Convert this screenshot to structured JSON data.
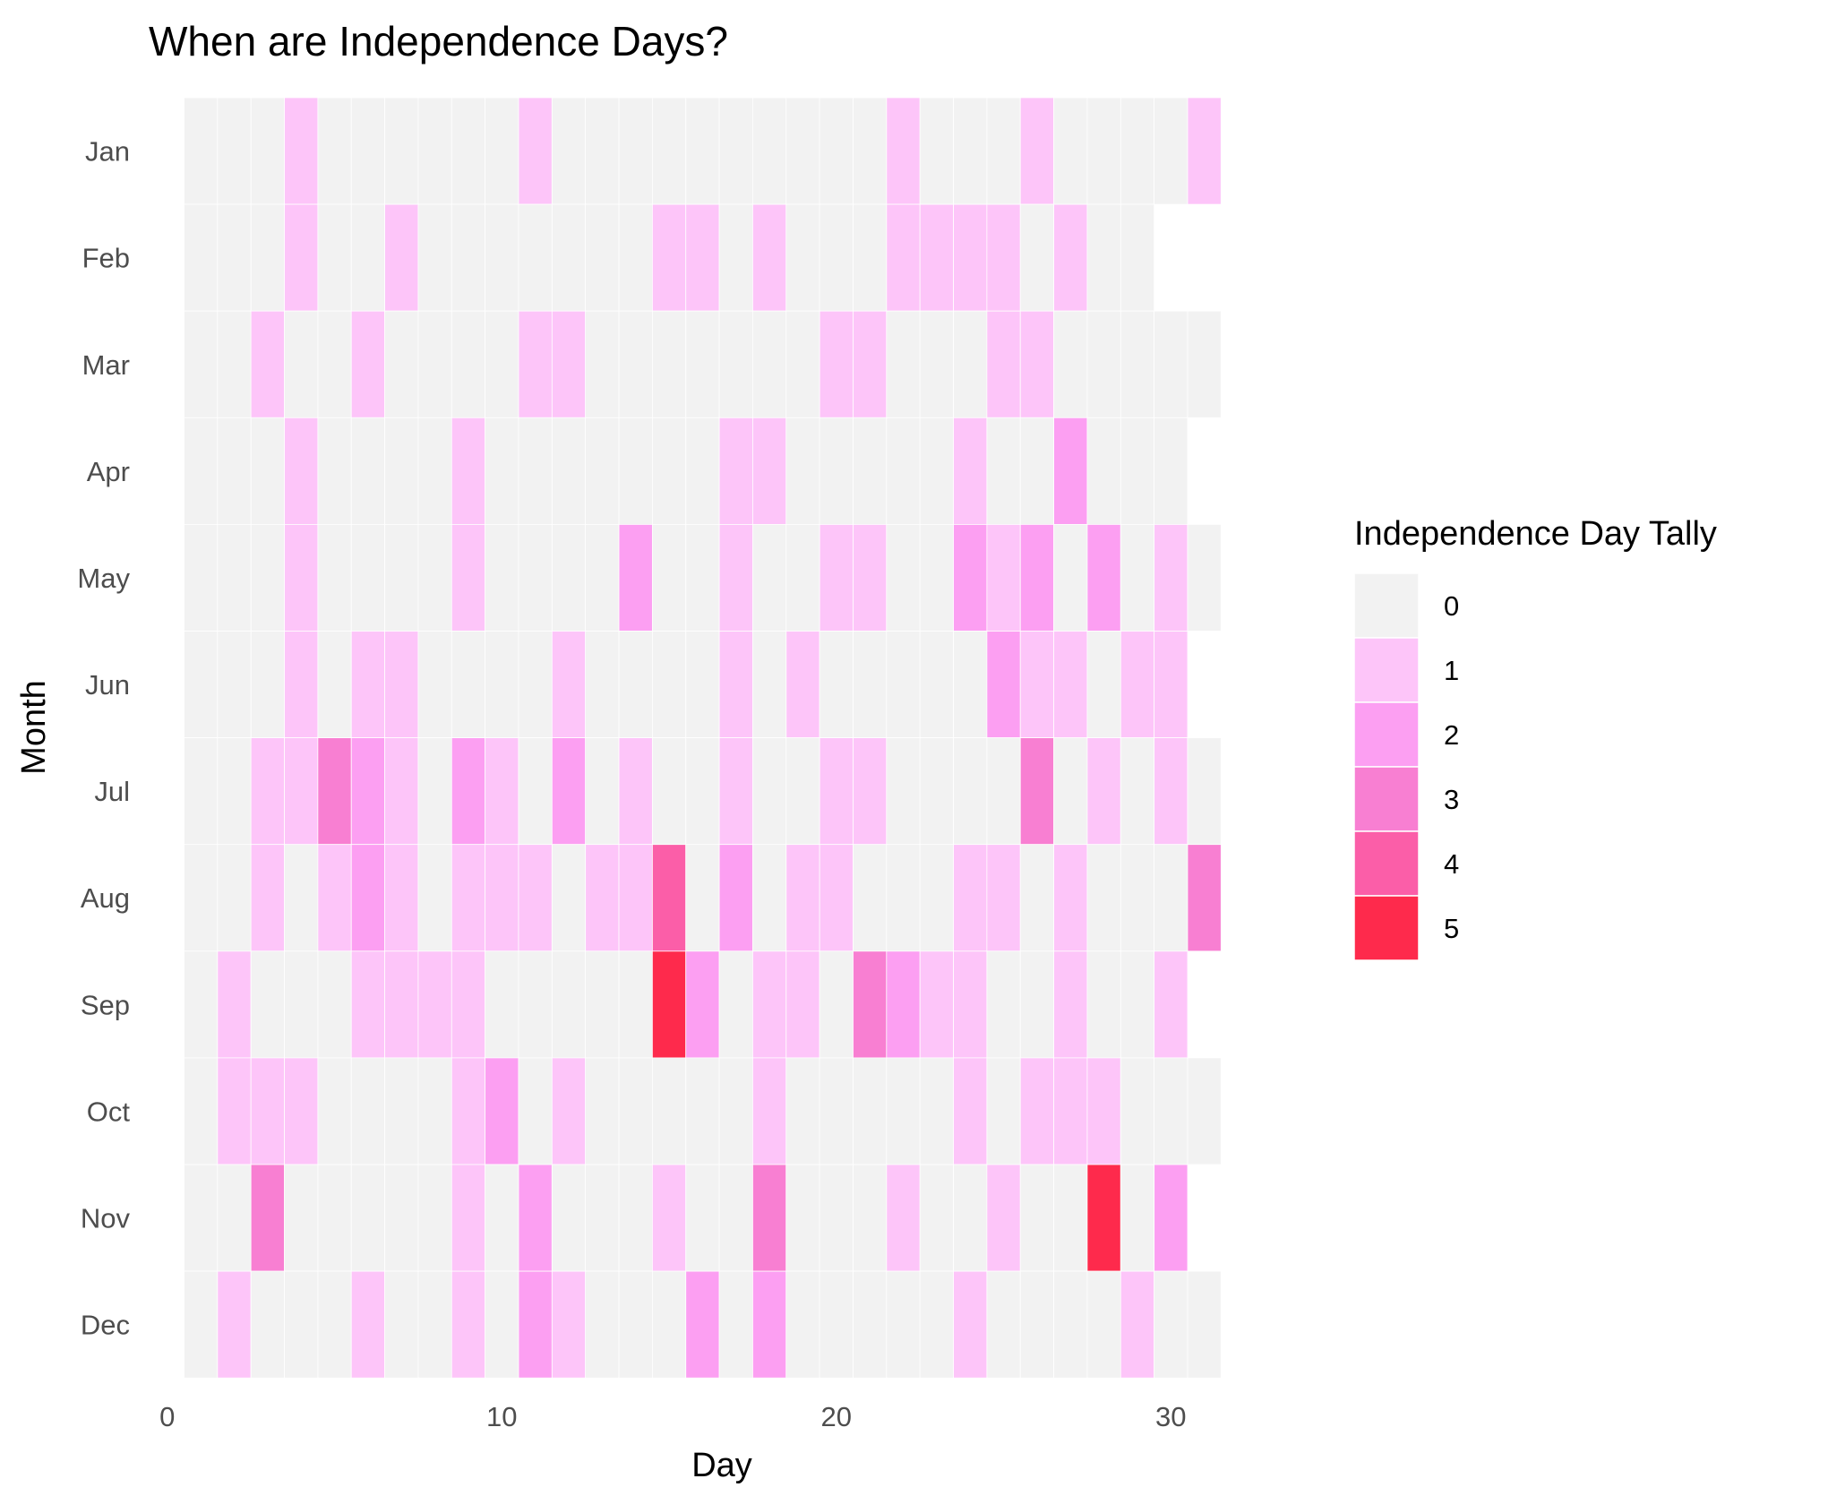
{
  "chart_data": {
    "type": "heatmap",
    "title": "When are Independence Days?",
    "xlabel": "Day",
    "ylabel": "Month",
    "xlim": [
      0,
      31.5
    ],
    "x_ticks": [
      0,
      10,
      20,
      30
    ],
    "months": [
      "Jan",
      "Feb",
      "Mar",
      "Apr",
      "May",
      "Jun",
      "Jul",
      "Aug",
      "Sep",
      "Oct",
      "Nov",
      "Dec"
    ],
    "days_in_month": [
      31,
      29,
      31,
      30,
      31,
      30,
      31,
      31,
      30,
      31,
      30,
      31
    ],
    "cells": [
      {
        "month": "Jan",
        "day": 4,
        "tally": 1
      },
      {
        "month": "Jan",
        "day": 11,
        "tally": 1
      },
      {
        "month": "Jan",
        "day": 22,
        "tally": 1
      },
      {
        "month": "Jan",
        "day": 26,
        "tally": 1
      },
      {
        "month": "Jan",
        "day": 31,
        "tally": 1
      },
      {
        "month": "Feb",
        "day": 4,
        "tally": 1
      },
      {
        "month": "Feb",
        "day": 7,
        "tally": 1
      },
      {
        "month": "Feb",
        "day": 15,
        "tally": 1
      },
      {
        "month": "Feb",
        "day": 16,
        "tally": 1
      },
      {
        "month": "Feb",
        "day": 18,
        "tally": 1
      },
      {
        "month": "Feb",
        "day": 22,
        "tally": 1
      },
      {
        "month": "Feb",
        "day": 23,
        "tally": 1
      },
      {
        "month": "Feb",
        "day": 24,
        "tally": 1
      },
      {
        "month": "Feb",
        "day": 25,
        "tally": 1
      },
      {
        "month": "Feb",
        "day": 27,
        "tally": 1
      },
      {
        "month": "Mar",
        "day": 3,
        "tally": 1
      },
      {
        "month": "Mar",
        "day": 6,
        "tally": 1
      },
      {
        "month": "Mar",
        "day": 11,
        "tally": 1
      },
      {
        "month": "Mar",
        "day": 12,
        "tally": 1
      },
      {
        "month": "Mar",
        "day": 20,
        "tally": 1
      },
      {
        "month": "Mar",
        "day": 21,
        "tally": 1
      },
      {
        "month": "Mar",
        "day": 25,
        "tally": 1
      },
      {
        "month": "Mar",
        "day": 26,
        "tally": 1
      },
      {
        "month": "Apr",
        "day": 4,
        "tally": 1
      },
      {
        "month": "Apr",
        "day": 9,
        "tally": 1
      },
      {
        "month": "Apr",
        "day": 17,
        "tally": 1
      },
      {
        "month": "Apr",
        "day": 18,
        "tally": 1
      },
      {
        "month": "Apr",
        "day": 24,
        "tally": 1
      },
      {
        "month": "Apr",
        "day": 27,
        "tally": 2
      },
      {
        "month": "May",
        "day": 4,
        "tally": 1
      },
      {
        "month": "May",
        "day": 9,
        "tally": 1
      },
      {
        "month": "May",
        "day": 14,
        "tally": 2
      },
      {
        "month": "May",
        "day": 17,
        "tally": 1
      },
      {
        "month": "May",
        "day": 20,
        "tally": 1
      },
      {
        "month": "May",
        "day": 21,
        "tally": 1
      },
      {
        "month": "May",
        "day": 24,
        "tally": 2
      },
      {
        "month": "May",
        "day": 25,
        "tally": 1
      },
      {
        "month": "May",
        "day": 26,
        "tally": 2
      },
      {
        "month": "May",
        "day": 28,
        "tally": 2
      },
      {
        "month": "May",
        "day": 30,
        "tally": 1
      },
      {
        "month": "Jun",
        "day": 4,
        "tally": 1
      },
      {
        "month": "Jun",
        "day": 6,
        "tally": 1
      },
      {
        "month": "Jun",
        "day": 7,
        "tally": 1
      },
      {
        "month": "Jun",
        "day": 12,
        "tally": 1
      },
      {
        "month": "Jun",
        "day": 17,
        "tally": 1
      },
      {
        "month": "Jun",
        "day": 19,
        "tally": 1
      },
      {
        "month": "Jun",
        "day": 25,
        "tally": 2
      },
      {
        "month": "Jun",
        "day": 26,
        "tally": 1
      },
      {
        "month": "Jun",
        "day": 27,
        "tally": 1
      },
      {
        "month": "Jun",
        "day": 29,
        "tally": 1
      },
      {
        "month": "Jun",
        "day": 30,
        "tally": 1
      },
      {
        "month": "Jul",
        "day": 3,
        "tally": 1
      },
      {
        "month": "Jul",
        "day": 4,
        "tally": 1
      },
      {
        "month": "Jul",
        "day": 5,
        "tally": 3
      },
      {
        "month": "Jul",
        "day": 6,
        "tally": 2
      },
      {
        "month": "Jul",
        "day": 7,
        "tally": 1
      },
      {
        "month": "Jul",
        "day": 9,
        "tally": 2
      },
      {
        "month": "Jul",
        "day": 10,
        "tally": 1
      },
      {
        "month": "Jul",
        "day": 12,
        "tally": 2
      },
      {
        "month": "Jul",
        "day": 14,
        "tally": 1
      },
      {
        "month": "Jul",
        "day": 17,
        "tally": 1
      },
      {
        "month": "Jul",
        "day": 20,
        "tally": 1
      },
      {
        "month": "Jul",
        "day": 21,
        "tally": 1
      },
      {
        "month": "Jul",
        "day": 26,
        "tally": 3
      },
      {
        "month": "Jul",
        "day": 28,
        "tally": 1
      },
      {
        "month": "Jul",
        "day": 30,
        "tally": 1
      },
      {
        "month": "Aug",
        "day": 3,
        "tally": 1
      },
      {
        "month": "Aug",
        "day": 5,
        "tally": 1
      },
      {
        "month": "Aug",
        "day": 6,
        "tally": 2
      },
      {
        "month": "Aug",
        "day": 7,
        "tally": 1
      },
      {
        "month": "Aug",
        "day": 9,
        "tally": 1
      },
      {
        "month": "Aug",
        "day": 10,
        "tally": 1
      },
      {
        "month": "Aug",
        "day": 11,
        "tally": 1
      },
      {
        "month": "Aug",
        "day": 13,
        "tally": 1
      },
      {
        "month": "Aug",
        "day": 14,
        "tally": 1
      },
      {
        "month": "Aug",
        "day": 15,
        "tally": 4
      },
      {
        "month": "Aug",
        "day": 17,
        "tally": 2
      },
      {
        "month": "Aug",
        "day": 19,
        "tally": 1
      },
      {
        "month": "Aug",
        "day": 20,
        "tally": 1
      },
      {
        "month": "Aug",
        "day": 24,
        "tally": 1
      },
      {
        "month": "Aug",
        "day": 25,
        "tally": 1
      },
      {
        "month": "Aug",
        "day": 27,
        "tally": 1
      },
      {
        "month": "Aug",
        "day": 31,
        "tally": 3
      },
      {
        "month": "Sep",
        "day": 2,
        "tally": 1
      },
      {
        "month": "Sep",
        "day": 6,
        "tally": 1
      },
      {
        "month": "Sep",
        "day": 7,
        "tally": 1
      },
      {
        "month": "Sep",
        "day": 8,
        "tally": 1
      },
      {
        "month": "Sep",
        "day": 9,
        "tally": 1
      },
      {
        "month": "Sep",
        "day": 15,
        "tally": 5
      },
      {
        "month": "Sep",
        "day": 16,
        "tally": 2
      },
      {
        "month": "Sep",
        "day": 18,
        "tally": 1
      },
      {
        "month": "Sep",
        "day": 19,
        "tally": 1
      },
      {
        "month": "Sep",
        "day": 21,
        "tally": 3
      },
      {
        "month": "Sep",
        "day": 22,
        "tally": 2
      },
      {
        "month": "Sep",
        "day": 23,
        "tally": 1
      },
      {
        "month": "Sep",
        "day": 24,
        "tally": 1
      },
      {
        "month": "Sep",
        "day": 27,
        "tally": 1
      },
      {
        "month": "Sep",
        "day": 30,
        "tally": 1
      },
      {
        "month": "Oct",
        "day": 2,
        "tally": 1
      },
      {
        "month": "Oct",
        "day": 3,
        "tally": 1
      },
      {
        "month": "Oct",
        "day": 4,
        "tally": 1
      },
      {
        "month": "Oct",
        "day": 9,
        "tally": 1
      },
      {
        "month": "Oct",
        "day": 10,
        "tally": 2
      },
      {
        "month": "Oct",
        "day": 12,
        "tally": 1
      },
      {
        "month": "Oct",
        "day": 18,
        "tally": 1
      },
      {
        "month": "Oct",
        "day": 24,
        "tally": 1
      },
      {
        "month": "Oct",
        "day": 26,
        "tally": 1
      },
      {
        "month": "Oct",
        "day": 27,
        "tally": 1
      },
      {
        "month": "Oct",
        "day": 28,
        "tally": 1
      },
      {
        "month": "Nov",
        "day": 3,
        "tally": 3
      },
      {
        "month": "Nov",
        "day": 9,
        "tally": 1
      },
      {
        "month": "Nov",
        "day": 11,
        "tally": 2
      },
      {
        "month": "Nov",
        "day": 15,
        "tally": 1
      },
      {
        "month": "Nov",
        "day": 18,
        "tally": 3
      },
      {
        "month": "Nov",
        "day": 22,
        "tally": 1
      },
      {
        "month": "Nov",
        "day": 25,
        "tally": 1
      },
      {
        "month": "Nov",
        "day": 28,
        "tally": 5
      },
      {
        "month": "Nov",
        "day": 30,
        "tally": 2
      },
      {
        "month": "Dec",
        "day": 2,
        "tally": 1
      },
      {
        "month": "Dec",
        "day": 6,
        "tally": 1
      },
      {
        "month": "Dec",
        "day": 9,
        "tally": 1
      },
      {
        "month": "Dec",
        "day": 11,
        "tally": 2
      },
      {
        "month": "Dec",
        "day": 12,
        "tally": 1
      },
      {
        "month": "Dec",
        "day": 16,
        "tally": 2
      },
      {
        "month": "Dec",
        "day": 18,
        "tally": 2
      },
      {
        "month": "Dec",
        "day": 24,
        "tally": 1
      },
      {
        "month": "Dec",
        "day": 29,
        "tally": 1
      }
    ],
    "legend": {
      "title": "Independence Day Tally",
      "position": "right",
      "levels": [
        {
          "label": "0",
          "value": 0,
          "color": "#f2f2f2"
        },
        {
          "label": "1",
          "value": 1,
          "color": "#fdc5f9"
        },
        {
          "label": "2",
          "value": 2,
          "color": "#fc9ff2"
        },
        {
          "label": "3",
          "value": 3,
          "color": "#f87fd2"
        },
        {
          "label": "4",
          "value": 4,
          "color": "#fb5ea8"
        },
        {
          "label": "5",
          "value": 5,
          "color": "#fe2a4c"
        }
      ]
    },
    "grid": false
  }
}
